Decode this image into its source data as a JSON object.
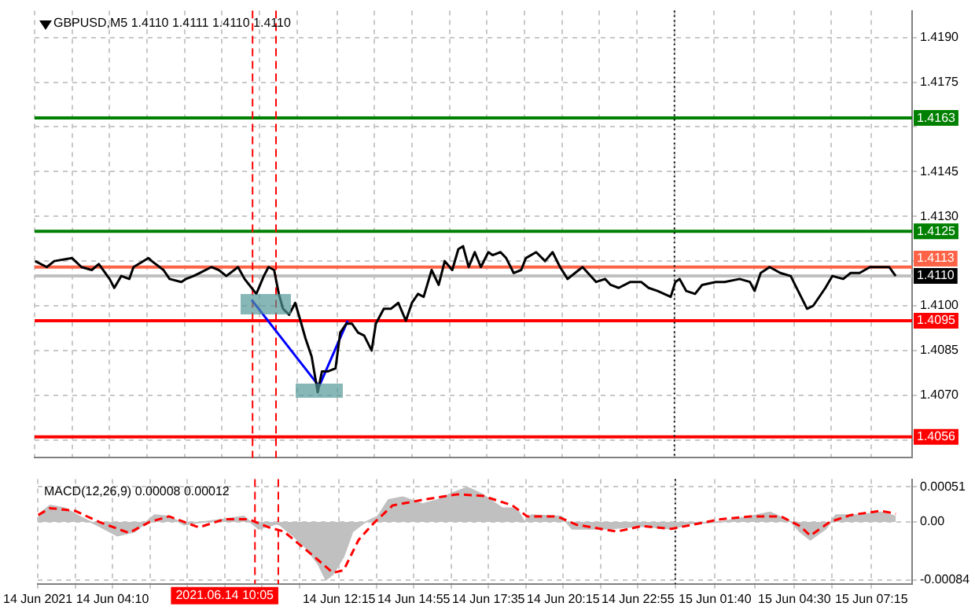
{
  "chart_data": [
    {
      "type": "line",
      "title": "GBPUSD,M5 1.4110 1.4111 1.4110 1.4110",
      "xlim": [
        "2021-06-14T01:30",
        "2021-06-15T08:42"
      ],
      "xticks": [
        "2021-06-14T01:30",
        "2021-06-14T02:50",
        "2021-06-14T04:10",
        "2021-06-14T05:30",
        "2021-06-14T06:50",
        "2021-06-14T08:10",
        "2021-06-14T09:30",
        "2021-06-14T10:50",
        "2021-06-14T12:15",
        "2021-06-14T13:35",
        "2021-06-14T14:55",
        "2021-06-14T16:15",
        "2021-06-14T17:35",
        "2021-06-14T18:55",
        "2021-06-14T20:15",
        "2021-06-14T21:35",
        "2021-06-14T22:55",
        "2021-06-15T00:15",
        "2021-06-15T01:40",
        "2021-06-15T03:05",
        "2021-06-15T04:30",
        "2021-06-15T05:50",
        "2021-06-15T07:15"
      ],
      "ylim": [
        1.4049,
        1.4199
      ],
      "yticks": [
        {
          "value": 1.419,
          "label": "1.4190"
        },
        1.4175,
        {
          "value": 1.416,
          "label": null
        },
        1.4145,
        {
          "value": 1.413,
          "label": "1.4130"
        },
        {
          "value": 1.4115,
          "label": null
        },
        {
          "value": 1.41,
          "label": "1.4100"
        },
        1.4085,
        {
          "value": 1.407,
          "label": "1.4070"
        },
        {
          "value": 1.4055,
          "label": null
        }
      ],
      "tick_labels": "y",
      "grid": true,
      "marker": "none",
      "ref_lines": [
        {
          "axis": "y",
          "value": 1.4163,
          "label": "1.4163",
          "color": "#008000"
        },
        {
          "axis": "y",
          "value": 1.4125,
          "label": "1.4125",
          "color": "#008000"
        },
        {
          "axis": "y",
          "value": 1.4113,
          "label": "1.4113",
          "color": "#ff6347"
        },
        {
          "axis": "y",
          "value": 1.411,
          "label": "1.4110",
          "color": "#c0c0c0"
        },
        {
          "axis": "y",
          "value": 1.4095,
          "label": "1.4095",
          "color": "#ff0000"
        },
        {
          "axis": "y",
          "value": 1.4056,
          "label": "1.4056",
          "color": "#ff0000"
        },
        {
          "axis": "x",
          "value": "2021-06-14T09:15",
          "color": "#ff0000",
          "line_style": "dashed"
        },
        {
          "axis": "x",
          "value": "2021-06-14T10:05",
          "color": "#ff0000",
          "line_style": "dashed"
        },
        {
          "axis": "x",
          "value": "2021-06-15T00:15",
          "color": "#000000",
          "line_style": "dotted"
        }
      ],
      "series": [
        {
          "color": "#000000",
          "x": [
            "2021-06-14T01:31",
            "2021-06-14T01:56",
            "2021-06-14T02:12",
            "2021-06-14T02:50",
            "2021-06-14T03:10",
            "2021-06-14T03:32",
            "2021-06-14T03:47",
            "2021-06-14T04:10",
            "2021-06-14T04:20",
            "2021-06-14T04:35",
            "2021-06-14T04:52",
            "2021-06-14T05:01",
            "2021-06-14T05:33",
            "2021-06-14T05:40",
            "2021-06-14T06:05",
            "2021-06-14T06:18",
            "2021-06-14T06:43",
            "2021-06-14T06:53",
            "2021-06-14T07:09",
            "2021-06-14T07:22",
            "2021-06-14T07:47",
            "2021-06-14T08:03",
            "2021-06-14T08:19",
            "2021-06-14T08:44",
            "2021-06-14T08:58",
            "2021-06-14T09:13",
            "2021-06-14T09:23",
            "2021-06-14T09:39",
            "2021-06-14T09:49",
            "2021-06-14T10:01",
            "2021-06-14T10:11",
            "2021-06-14T10:20",
            "2021-06-14T10:33",
            "2021-06-14T10:46",
            "2021-06-14T10:59",
            "2021-06-14T11:08",
            "2021-06-14T11:21",
            "2021-06-14T11:34",
            "2021-06-14T11:43",
            "2021-06-14T11:56",
            "2021-06-14T12:12",
            "2021-06-14T12:22",
            "2021-06-14T12:35",
            "2021-06-14T12:47",
            "2021-06-14T13:00",
            "2021-06-14T13:13",
            "2021-06-14T13:29",
            "2021-06-14T13:38",
            "2021-06-14T13:55",
            "2021-06-14T14:10",
            "2021-06-14T14:26",
            "2021-06-14T14:42",
            "2021-06-14T14:55",
            "2021-06-14T15:08",
            "2021-06-14T15:20",
            "2021-06-14T15:37",
            "2021-06-14T15:52",
            "2021-06-14T16:05",
            "2021-06-14T16:21",
            "2021-06-14T16:34",
            "2021-06-14T16:44",
            "2021-06-14T16:56",
            "2021-06-14T17:09",
            "2021-06-14T17:22",
            "2021-06-14T17:38",
            "2021-06-14T17:47",
            "2021-06-14T18:04",
            "2021-06-14T18:16",
            "2021-06-14T18:32",
            "2021-06-14T18:48",
            "2021-06-14T18:58",
            "2021-06-14T19:20",
            "2021-06-14T19:39",
            "2021-06-14T19:55",
            "2021-06-14T20:11",
            "2021-06-14T20:27",
            "2021-06-14T20:43",
            "2021-06-14T20:59",
            "2021-06-14T21:28",
            "2021-06-14T21:47",
            "2021-06-14T21:59",
            "2021-06-14T22:16",
            "2021-06-14T22:41",
            "2021-06-14T23:04",
            "2021-06-14T23:20",
            "2021-06-14T23:39",
            "2021-06-15T00:07",
            "2021-06-15T00:17",
            "2021-06-15T00:26",
            "2021-06-15T00:40",
            "2021-06-15T00:59",
            "2021-06-15T01:14",
            "2021-06-15T01:43",
            "2021-06-15T02:02",
            "2021-06-15T02:34",
            "2021-06-15T02:56",
            "2021-06-15T03:06",
            "2021-06-15T03:19",
            "2021-06-15T03:38",
            "2021-06-15T04:01",
            "2021-06-15T04:23",
            "2021-06-15T04:42",
            "2021-06-15T04:58",
            "2021-06-15T05:11",
            "2021-06-15T05:37",
            "2021-06-15T05:52",
            "2021-06-15T06:15",
            "2021-06-15T06:31",
            "2021-06-15T06:50",
            "2021-06-15T07:12",
            "2021-06-15T07:34",
            "2021-06-15T07:53",
            "2021-06-15T08:07"
          ],
          "values": [
            1.4115,
            1.4113,
            1.4115,
            1.4116,
            1.4113,
            1.4112,
            1.4114,
            1.4109,
            1.4106,
            1.411,
            1.4109,
            1.4113,
            1.4116,
            1.4115,
            1.4112,
            1.4109,
            1.4108,
            1.4109,
            1.411,
            1.4111,
            1.4113,
            1.4112,
            1.411,
            1.4113,
            1.4109,
            1.4106,
            1.4104,
            1.411,
            1.4113,
            1.4112,
            1.4104,
            1.4099,
            1.4097,
            1.4101,
            1.4094,
            1.4089,
            1.4083,
            1.4071,
            1.4078,
            1.4078,
            1.4079,
            1.4091,
            1.4094,
            1.4094,
            1.4091,
            1.409,
            1.4085,
            1.4094,
            1.4099,
            1.4099,
            1.4101,
            1.4095,
            1.4101,
            1.4104,
            1.4103,
            1.4112,
            1.4107,
            1.4115,
            1.4112,
            1.4119,
            1.412,
            1.4113,
            1.4118,
            1.4113,
            1.4118,
            1.4117,
            1.4118,
            1.4116,
            1.4111,
            1.4112,
            1.4116,
            1.4118,
            1.4115,
            1.4118,
            1.4113,
            1.4109,
            1.4111,
            1.4113,
            1.4108,
            1.4109,
            1.4107,
            1.4106,
            1.4108,
            1.4108,
            1.4106,
            1.4105,
            1.4103,
            1.4108,
            1.4109,
            1.4105,
            1.4104,
            1.4107,
            1.4108,
            1.4108,
            1.4109,
            1.4108,
            1.4105,
            1.4111,
            1.4113,
            1.4111,
            1.411,
            1.4104,
            1.4099,
            1.41,
            1.4106,
            1.411,
            1.4109,
            1.4111,
            1.4111,
            1.4113,
            1.4113,
            1.4113,
            1.411
          ]
        },
        {
          "color": "#0000ff",
          "x": [
            "2021-06-14T09:13",
            "2021-06-14T11:37",
            "2021-06-14T12:38"
          ],
          "values": [
            1.4102,
            1.4073,
            1.4095
          ]
        }
      ]
    },
    {
      "type": "area",
      "title": "MACD(12,26,9) 0.00008 0.00012",
      "xlim": [
        "2021-06-14T01:30",
        "2021-06-15T08:42"
      ],
      "xticks": [
        {
          "value": "2021-06-14T01:30",
          "label": "14 Jun 2021"
        },
        {
          "value": "2021-06-14T02:50",
          "label": null
        },
        {
          "value": "2021-06-14T04:10",
          "label": "14 Jun 04:10"
        },
        {
          "value": "2021-06-14T05:30",
          "label": null
        },
        {
          "value": "2021-06-14T06:50",
          "label": null
        },
        {
          "value": "2021-06-14T08:10",
          "label": null
        },
        {
          "value": "2021-06-14T09:30",
          "label": null
        },
        {
          "value": "2021-06-14T10:50",
          "label": null
        },
        {
          "value": "2021-06-14T12:15",
          "label": "14 Jun 12:15"
        },
        {
          "value": "2021-06-14T13:35",
          "label": null
        },
        {
          "value": "2021-06-14T14:55",
          "label": "14 Jun 14:55"
        },
        {
          "value": "2021-06-14T16:15",
          "label": null
        },
        {
          "value": "2021-06-14T17:35",
          "label": "14 Jun 17:35"
        },
        {
          "value": "2021-06-14T18:55",
          "label": null
        },
        {
          "value": "2021-06-14T20:15",
          "label": "14 Jun 20:15"
        },
        {
          "value": "2021-06-14T21:35",
          "label": null
        },
        {
          "value": "2021-06-14T22:55",
          "label": "14 Jun 22:55"
        },
        {
          "value": "2021-06-15T00:15",
          "label": null
        },
        {
          "value": "2021-06-15T01:40",
          "label": "15 Jun 01:40"
        },
        {
          "value": "2021-06-15T03:05",
          "label": null
        },
        {
          "value": "2021-06-15T04:30",
          "label": "15 Jun 04:30"
        },
        {
          "value": "2021-06-15T05:50",
          "label": null
        },
        {
          "value": "2021-06-15T07:15",
          "label": "15 Jun 07:15"
        }
      ],
      "ylim": [
        -0.0009,
        0.00062
      ],
      "yticks": [
        0.00051,
        {
          "value": 0,
          "label": "0.00"
        },
        -0.00084
      ],
      "grid": true,
      "marker": "none",
      "ref_lines": [
        {
          "axis": "x",
          "value": "2021-06-14T09:15",
          "color": "#ff0000",
          "line_style": "dashed"
        },
        {
          "axis": "x",
          "value": "2021-06-14T10:05",
          "color": "#ff0000",
          "line_style": "dashed",
          "label": "2021.06.14 10:05"
        },
        {
          "axis": "x",
          "value": "2021-06-15T00:15",
          "color": "#000000",
          "line_style": "dotted"
        }
      ],
      "series": [
        {
          "color": "#c0c0c0",
          "x": [
            "2021-06-14T01:31",
            "2021-06-14T01:56",
            "2021-06-14T02:28",
            "2021-06-14T02:59",
            "2021-06-14T03:41",
            "2021-06-14T04:20",
            "2021-06-14T04:58",
            "2021-06-14T05:40",
            "2021-06-14T06:11",
            "2021-06-14T06:43",
            "2021-06-14T07:25",
            "2021-06-14T08:10",
            "2021-06-14T08:51",
            "2021-06-14T09:23",
            "2021-06-14T09:45",
            "2021-06-14T10:04",
            "2021-06-14T10:37",
            "2021-06-14T11:05",
            "2021-06-14T11:31",
            "2021-06-14T11:47",
            "2021-06-14T12:02",
            "2021-06-14T12:25",
            "2021-06-14T12:44",
            "2021-06-14T13:07",
            "2021-06-14T13:38",
            "2021-06-14T14:01",
            "2021-06-14T14:32",
            "2021-06-14T15:14",
            "2021-06-14T15:46",
            "2021-06-14T16:18",
            "2021-06-14T16:50",
            "2021-06-14T17:22",
            "2021-06-14T18:04",
            "2021-06-14T18:35",
            "2021-06-14T18:52",
            "2021-06-14T19:07",
            "2021-06-14T20:11",
            "2021-06-14T20:34",
            "2021-06-14T21:47",
            "2021-06-14T23:04",
            "2021-06-15T00:07",
            "2021-06-15T00:49",
            "2021-06-15T01:53",
            "2021-06-15T02:56",
            "2021-06-15T03:38",
            "2021-06-15T04:23",
            "2021-06-15T04:42",
            "2021-06-15T05:04",
            "2021-06-15T05:37",
            "2021-06-15T05:59",
            "2021-06-15T06:50",
            "2021-06-15T07:34",
            "2021-06-15T08:07"
          ],
          "values": [
            0.0001,
            0.00024,
            0.0002,
            8e-05,
            -6e-05,
            -0.0002,
            -0.00014,
            0.0001,
            8e-05,
            -4e-05,
            0,
            4e-05,
            8e-05,
            -0.0001,
            -6e-05,
            -2e-05,
            -0.0002,
            -0.00038,
            -0.00062,
            -0.00084,
            -0.00076,
            -0.0005,
            -0.00014,
            -2e-05,
            8e-05,
            0.00032,
            0.00036,
            0.00026,
            0.00032,
            0.00042,
            0.0005,
            0.0004,
            0.0002,
            0.0002,
            0,
            0.0001,
            8e-05,
            -0.0001,
            -0.0001,
            -6e-05,
            -0.0001,
            -2e-05,
            0,
            8e-05,
            0.00014,
            0,
            -0.00014,
            -0.00026,
            -0.0001,
            0.0001,
            0.0001,
            0.00014,
            8e-05
          ]
        },
        {
          "type": "line",
          "color": "#ff0000",
          "line_style": "dashed",
          "x": [
            "2021-06-14T01:31",
            "2021-06-14T01:56",
            "2021-06-14T02:50",
            "2021-06-14T03:41",
            "2021-06-14T04:45",
            "2021-06-14T05:30",
            "2021-06-14T06:11",
            "2021-06-14T07:15",
            "2021-06-14T08:10",
            "2021-06-14T09:01",
            "2021-06-14T09:45",
            "2021-06-14T10:17",
            "2021-06-14T11:21",
            "2021-06-14T12:02",
            "2021-06-14T12:25",
            "2021-06-14T12:57",
            "2021-06-14T13:29",
            "2021-06-14T14:10",
            "2021-06-14T15:14",
            "2021-06-14T16:28",
            "2021-06-14T17:22",
            "2021-06-14T18:26",
            "2021-06-14T18:58",
            "2021-06-14T20:02",
            "2021-06-14T20:43",
            "2021-06-14T22:10",
            "2021-06-14T23:04",
            "2021-06-15T00:07",
            "2021-06-15T01:53",
            "2021-06-15T02:56",
            "2021-06-15T04:01",
            "2021-06-15T04:42",
            "2021-06-15T05:04",
            "2021-06-15T05:46",
            "2021-06-15T06:31",
            "2021-06-15T07:34",
            "2021-06-15T08:07"
          ],
          "values": [
            0.0001,
            0.0002,
            0.00016,
            0,
            -0.00016,
            0,
            8e-05,
            -8e-05,
            4e-05,
            4e-05,
            -8e-05,
            -0.00014,
            -0.0005,
            -0.00074,
            -0.0007,
            -0.00026,
            -2e-05,
            0.00024,
            0.00032,
            0.0004,
            0.00038,
            0.00024,
            8e-05,
            8e-05,
            -4e-05,
            -0.00014,
            -6e-05,
            -0.0001,
            4e-05,
            8e-05,
            8e-05,
            -6e-05,
            -0.0002,
            0,
            0.0001,
            0.00016,
            0.00012
          ]
        }
      ]
    }
  ]
}
